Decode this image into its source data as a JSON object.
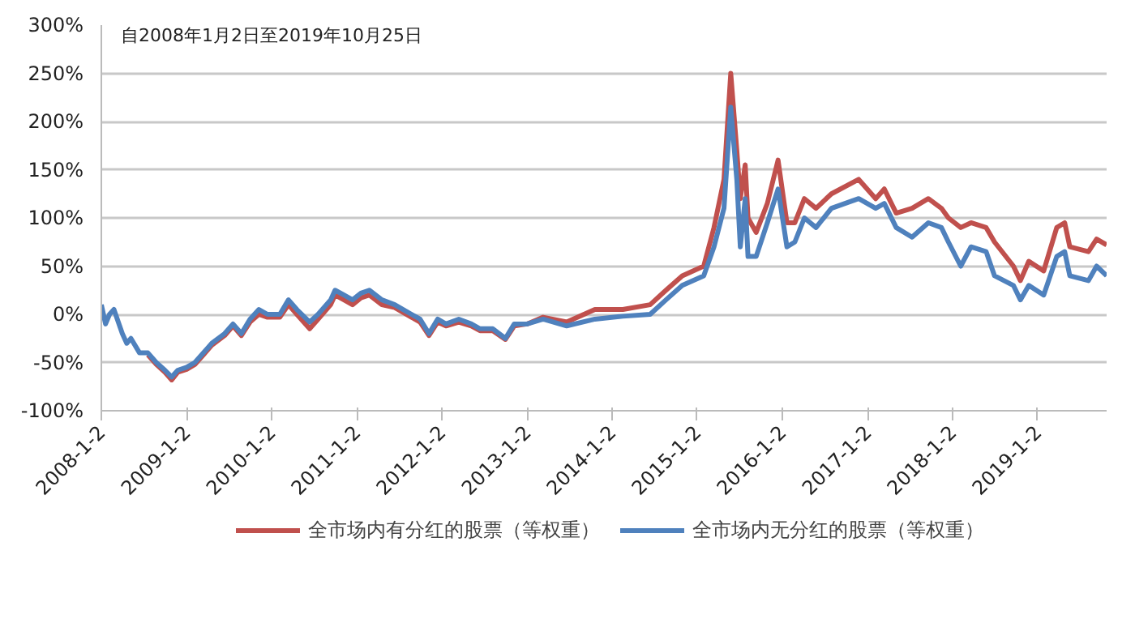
{
  "chart_data": {
    "type": "line",
    "annotations": [
      "自2008年1月2日至2019年10月25日"
    ],
    "x": [
      "2008-01-02",
      "2008-01-20",
      "2008-02-06",
      "2008-02-25",
      "2008-04-01",
      "2008-04-20",
      "2008-05-08",
      "2008-06-14",
      "2008-07-20",
      "2008-08-25",
      "2008-10-01",
      "2008-10-30",
      "2008-11-25",
      "2009-01-02",
      "2009-02-06",
      "2009-03-15",
      "2009-04-20",
      "2009-06-14",
      "2009-07-20",
      "2009-08-25",
      "2009-10-01",
      "2009-11-08",
      "2009-12-15",
      "2010-02-06",
      "2010-03-15",
      "2010-04-20",
      "2010-06-14",
      "2010-07-20",
      "2010-09-12",
      "2010-10-01",
      "2010-11-08",
      "2010-12-15",
      "2011-01-20",
      "2011-02-25",
      "2011-04-20",
      "2011-06-14",
      "2011-07-20",
      "2011-08-25",
      "2011-10-01",
      "2011-11-08",
      "2011-12-15",
      "2012-01-20",
      "2012-03-15",
      "2012-05-08",
      "2012-06-14",
      "2012-08-08",
      "2012-10-01",
      "2012-11-08",
      "2013-01-02",
      "2013-03-12",
      "2013-06-21",
      "2013-10-20",
      "2014-02-17",
      "2014-06-14",
      "2014-08-21",
      "2014-10-30",
      "2015-01-30",
      "2015-03-15",
      "2015-04-27",
      "2015-05-26",
      "2015-06-21",
      "2015-07-06",
      "2015-07-27",
      "2015-08-08",
      "2015-09-12",
      "2015-10-30",
      "2015-12-15",
      "2016-01-22",
      "2016-02-25",
      "2016-04-06",
      "2016-05-26",
      "2016-07-31",
      "2016-11-25",
      "2017-02-06",
      "2017-03-15",
      "2017-05-05",
      "2017-07-12",
      "2017-09-20",
      "2017-11-15",
      "2017-12-15",
      "2018-02-06",
      "2018-03-22",
      "2018-05-26",
      "2018-07-01",
      "2018-09-20",
      "2018-10-20",
      "2018-11-25",
      "2019-01-28",
      "2019-03-25",
      "2019-04-28",
      "2019-05-20",
      "2019-08-08",
      "2019-09-12",
      "2019-10-25"
    ],
    "series": [
      {
        "name": "全市场内有分红的股票（等权重）",
        "color": "#c0504d",
        "values": [
          null,
          null,
          null,
          null,
          null,
          null,
          null,
          null,
          -42,
          -52,
          -60,
          -68,
          -60,
          -57,
          -52,
          -42,
          -32,
          -22,
          -12,
          -22,
          -8,
          0,
          -3,
          -3,
          10,
          0,
          -15,
          -5,
          10,
          20,
          15,
          10,
          17,
          20,
          10,
          7,
          2,
          -3,
          -8,
          -22,
          -8,
          -12,
          -8,
          -12,
          -17,
          -17,
          -26,
          -12,
          -10,
          -3,
          -8,
          5,
          5,
          10,
          25,
          40,
          50,
          90,
          140,
          250,
          170,
          120,
          155,
          100,
          85,
          115,
          160,
          95,
          95,
          120,
          110,
          125,
          140,
          120,
          130,
          105,
          110,
          120,
          110,
          100,
          90,
          95,
          90,
          75,
          50,
          35,
          55,
          45,
          90,
          95,
          70,
          65,
          78,
          72
        ]
      },
      {
        "name": "全市场内无分红的股票（等权重）",
        "color": "#4f81bd",
        "values": [
          10,
          -10,
          0,
          5,
          -20,
          -30,
          -25,
          -40,
          -40,
          -50,
          -58,
          -65,
          -58,
          -55,
          -50,
          -40,
          -30,
          -20,
          -10,
          -20,
          -5,
          5,
          0,
          0,
          15,
          5,
          -8,
          0,
          15,
          25,
          20,
          15,
          22,
          25,
          15,
          10,
          5,
          0,
          -5,
          -20,
          -5,
          -10,
          -5,
          -10,
          -15,
          -15,
          -25,
          -10,
          -10,
          -5,
          -12,
          -5,
          -2,
          0,
          15,
          30,
          40,
          70,
          110,
          215,
          140,
          70,
          120,
          60,
          60,
          95,
          130,
          70,
          75,
          100,
          90,
          110,
          120,
          110,
          115,
          90,
          80,
          95,
          90,
          75,
          50,
          70,
          65,
          40,
          30,
          15,
          30,
          20,
          60,
          65,
          40,
          35,
          50,
          40
        ]
      }
    ],
    "xlim": [
      "2008-01-02",
      "2019-10-25"
    ],
    "xticks": [
      {
        "value": "2008-01-02",
        "label": "2008-1-2"
      },
      {
        "value": "2009-01-02",
        "label": "2009-1-2"
      },
      {
        "value": "2010-01-02",
        "label": "2010-1-2"
      },
      {
        "value": "2011-01-02",
        "label": "2011-1-2"
      },
      {
        "value": "2012-01-02",
        "label": "2012-1-2"
      },
      {
        "value": "2013-01-02",
        "label": "2013-1-2"
      },
      {
        "value": "2014-01-02",
        "label": "2014-1-2"
      },
      {
        "value": "2015-01-02",
        "label": "2015-1-2"
      },
      {
        "value": "2016-01-02",
        "label": "2016-1-2"
      },
      {
        "value": "2017-01-02",
        "label": "2017-1-2"
      },
      {
        "value": "2018-01-02",
        "label": "2018-1-2"
      },
      {
        "value": "2019-01-02",
        "label": "2019-1-2"
      }
    ],
    "ylim": [
      -100,
      300
    ],
    "yticks": [
      {
        "value": -100,
        "label": "-100%"
      },
      {
        "value": -50,
        "label": "-50%"
      },
      {
        "value": 0,
        "label": "0%"
      },
      {
        "value": 50,
        "label": "50%"
      },
      {
        "value": 100,
        "label": "100%"
      },
      {
        "value": 150,
        "label": "150%"
      },
      {
        "value": 200,
        "label": "200%"
      },
      {
        "value": 250,
        "label": "250%"
      },
      {
        "value": 300,
        "label": "300%"
      }
    ],
    "grid": "y",
    "legend": "bottom",
    "line_style": "solid",
    "marker": "none"
  }
}
